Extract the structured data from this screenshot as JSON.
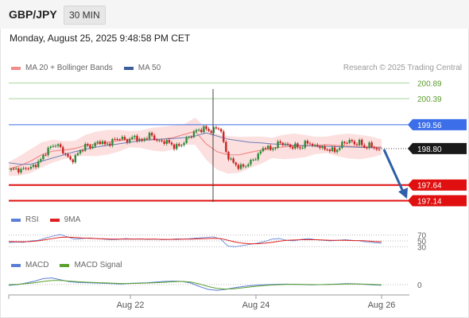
{
  "header": {
    "pair": "GBP/JPY",
    "timeframe": "30 MIN"
  },
  "datetime": "Monday, August 25, 2025 9:48:58 PM CET",
  "credit": "Research © 2025 Trading Central",
  "legend_main": [
    {
      "label": "MA 20 + Bollinger Bands",
      "color": "#f28b8b"
    },
    {
      "label": "MA 50",
      "color": "#3b5d9c"
    }
  ],
  "legend_rsi": [
    {
      "label": "RSI",
      "color": "#5b7fd6"
    },
    {
      "label": "9MA",
      "color": "#e02020"
    }
  ],
  "legend_macd": [
    {
      "label": "MACD",
      "color": "#5b7fd6"
    },
    {
      "label": "MACD Signal",
      "color": "#5aa02c"
    }
  ],
  "colors": {
    "up": "#2e8b3a",
    "down": "#cc2222",
    "resistance": "#a8d49a",
    "pivot": "#3b6ee8",
    "support": "#e01010",
    "arrow": "#2f5fa8"
  },
  "chart_data": {
    "type": "candlestick",
    "x_ticks": [
      "Aug 22",
      "Aug 24",
      "Aug 26"
    ],
    "ylim": [
      196.95,
      201.05
    ],
    "current_price": "198.80",
    "levels": [
      {
        "value": 200.89,
        "label": "200.89",
        "kind": "resistance"
      },
      {
        "value": 200.39,
        "label": "200.39",
        "kind": "resistance"
      },
      {
        "value": 199.56,
        "label": "199.56",
        "kind": "pivot"
      },
      {
        "value": 197.64,
        "label": "197.64",
        "kind": "support"
      },
      {
        "value": 197.14,
        "label": "197.14",
        "kind": "support"
      }
    ],
    "price_path": [
      198.12,
      198.15,
      198.1,
      198.2,
      198.18,
      198.3,
      198.45,
      198.7,
      198.85,
      198.95,
      198.8,
      198.6,
      198.4,
      198.55,
      198.75,
      198.9,
      198.85,
      198.95,
      199.05,
      198.9,
      199.0,
      199.1,
      199.15,
      199.05,
      199.1,
      199.2,
      199.0,
      199.15,
      199.25,
      199.1,
      199.0,
      199.05,
      198.95,
      198.85,
      198.9,
      199.05,
      199.2,
      199.35,
      199.4,
      199.45,
      199.35,
      199.42,
      199.5,
      198.75,
      198.45,
      198.3,
      198.2,
      198.25,
      198.35,
      198.5,
      198.65,
      198.9,
      198.75,
      198.85,
      199.0,
      198.95,
      198.85,
      198.9,
      198.8,
      198.95,
      199.0,
      198.85,
      198.9,
      198.75,
      198.8,
      198.7,
      198.85,
      199.0,
      199.05,
      198.95,
      199.0,
      198.85,
      198.9,
      198.85,
      198.7
    ],
    "ma20": [
      198.15,
      198.25,
      198.4,
      198.6,
      198.72,
      198.75,
      198.8,
      198.9,
      198.95,
      199.0,
      199.05,
      199.1,
      199.1,
      199.1,
      199.1,
      199.15,
      199.25,
      199.35,
      198.95,
      198.7,
      198.6,
      198.6,
      198.68,
      198.75,
      198.82,
      198.85,
      198.88,
      198.88,
      198.9,
      198.92,
      198.9,
      198.88,
      198.85,
      198.85,
      198.85
    ],
    "ma50": [
      198.35,
      198.3,
      198.3,
      198.4,
      198.5,
      198.6,
      198.7,
      198.78,
      198.85,
      198.9,
      198.95,
      199.0,
      199.05,
      199.08,
      199.1,
      199.12,
      199.15,
      199.2,
      199.3,
      199.2,
      199.1,
      199.05,
      199.0,
      198.98,
      198.95,
      198.93,
      198.9,
      198.9,
      198.88,
      198.87,
      198.86,
      198.85,
      198.84,
      198.83,
      198.82
    ],
    "rsi": {
      "levels": [
        "70",
        "50",
        "30"
      ],
      "rsi_values": [
        44,
        46,
        45,
        50,
        52,
        60,
        66,
        72,
        64,
        56,
        58,
        60,
        58,
        56,
        54,
        55,
        58,
        56,
        57,
        55,
        56,
        54,
        55,
        57,
        56,
        58,
        60,
        62,
        64,
        56,
        32,
        30,
        34,
        38,
        42,
        48,
        56,
        58,
        52,
        50,
        55,
        58,
        54,
        52,
        50,
        52,
        54,
        52,
        50,
        46,
        44,
        42
      ],
      "ma9_values": [
        48,
        47,
        47,
        48,
        50,
        54,
        58,
        62,
        63,
        62,
        60,
        59,
        58,
        57,
        56,
        56,
        56,
        56,
        56,
        56,
        56,
        55,
        55,
        55,
        56,
        56,
        57,
        58,
        59,
        58,
        52,
        46,
        42,
        40,
        40,
        42,
        45,
        49,
        52,
        53,
        54,
        54,
        54,
        53,
        52,
        52,
        52,
        51,
        51,
        50,
        48,
        47
      ]
    },
    "macd": {
      "zero_label": "0",
      "macd_values": [
        -0.05,
        0,
        0.1,
        0.22,
        0.38,
        0.42,
        0.3,
        0.18,
        0.14,
        0.12,
        0.1,
        0.08,
        0.06,
        0.04,
        0.08,
        0.1,
        0.12,
        0.16,
        0.2,
        0.22,
        0.2,
        0.1,
        -0.12,
        -0.3,
        -0.36,
        -0.3,
        -0.2,
        -0.12,
        -0.06,
        -0.02,
        0,
        0.02,
        0.03,
        0.02,
        0,
        -0.02,
        0,
        0.02,
        0.04,
        0.06,
        0.05,
        0.02,
        -0.02,
        -0.04
      ],
      "signal_values": [
        0,
        0.02,
        0.06,
        0.12,
        0.2,
        0.26,
        0.26,
        0.22,
        0.18,
        0.15,
        0.13,
        0.11,
        0.09,
        0.07,
        0.07,
        0.08,
        0.1,
        0.12,
        0.15,
        0.18,
        0.2,
        0.16,
        0.04,
        -0.12,
        -0.24,
        -0.28,
        -0.26,
        -0.2,
        -0.14,
        -0.08,
        -0.04,
        -0.01,
        0.01,
        0.02,
        0.01,
        0,
        0,
        0.01,
        0.02,
        0.04,
        0.04,
        0.03,
        0.01,
        -0.01
      ]
    }
  }
}
